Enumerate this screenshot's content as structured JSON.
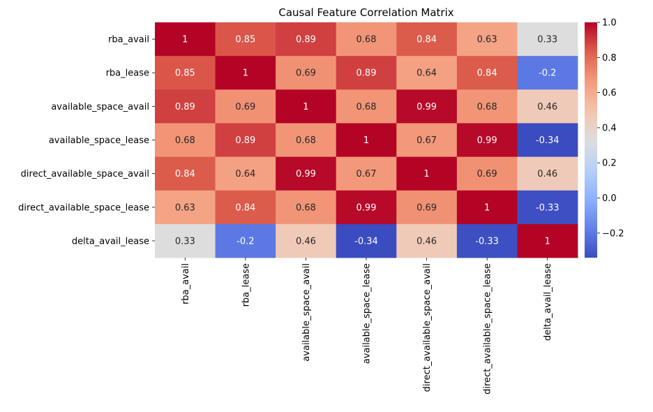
{
  "chart_data": {
    "type": "heatmap",
    "title": "Causal Feature Correlation Matrix",
    "rows": [
      "rba_avail",
      "rba_lease",
      "available_space_avail",
      "available_space_lease",
      "direct_available_space_avail",
      "direct_available_space_lease",
      "delta_avail_lease"
    ],
    "columns": [
      "rba_avail",
      "rba_lease",
      "available_space_avail",
      "available_space_lease",
      "direct_available_space_avail",
      "direct_available_space_lease",
      "delta_avail_lease"
    ],
    "values": [
      [
        1,
        0.85,
        0.89,
        0.68,
        0.84,
        0.63,
        0.33
      ],
      [
        0.85,
        1,
        0.69,
        0.89,
        0.64,
        0.84,
        -0.2
      ],
      [
        0.89,
        0.69,
        1,
        0.68,
        0.99,
        0.68,
        0.46
      ],
      [
        0.68,
        0.89,
        0.68,
        1,
        0.67,
        0.99,
        -0.34
      ],
      [
        0.84,
        0.64,
        0.99,
        0.67,
        1,
        0.69,
        0.46
      ],
      [
        0.63,
        0.84,
        0.68,
        0.99,
        0.69,
        1,
        -0.33
      ],
      [
        0.33,
        -0.2,
        0.46,
        -0.34,
        0.46,
        -0.33,
        1
      ]
    ],
    "annotations": [
      [
        "1",
        "0.85",
        "0.89",
        "0.68",
        "0.84",
        "0.63",
        "0.33"
      ],
      [
        "0.85",
        "1",
        "0.69",
        "0.89",
        "0.64",
        "0.84",
        "-0.2"
      ],
      [
        "0.89",
        "0.69",
        "1",
        "0.68",
        "0.99",
        "0.68",
        "0.46"
      ],
      [
        "0.68",
        "0.89",
        "0.68",
        "1",
        "0.67",
        "0.99",
        "-0.34"
      ],
      [
        "0.84",
        "0.64",
        "0.99",
        "0.67",
        "1",
        "0.69",
        "0.46"
      ],
      [
        "0.63",
        "0.84",
        "0.68",
        "0.99",
        "0.69",
        "1",
        "-0.33"
      ],
      [
        "0.33",
        "-0.2",
        "0.46",
        "-0.34",
        "0.46",
        "-0.33",
        "1"
      ]
    ],
    "colormap": "coolwarm",
    "vmin": -0.34,
    "vmax": 1,
    "colorbar_ticks": [
      -0.2,
      0.0,
      0.2,
      0.4,
      0.6,
      0.8,
      1.0
    ],
    "colorbar_tick_labels": [
      "−0.2",
      "0.0",
      "0.2",
      "0.4",
      "0.6",
      "0.8",
      "1.0"
    ],
    "legend": "colorbar-right"
  }
}
